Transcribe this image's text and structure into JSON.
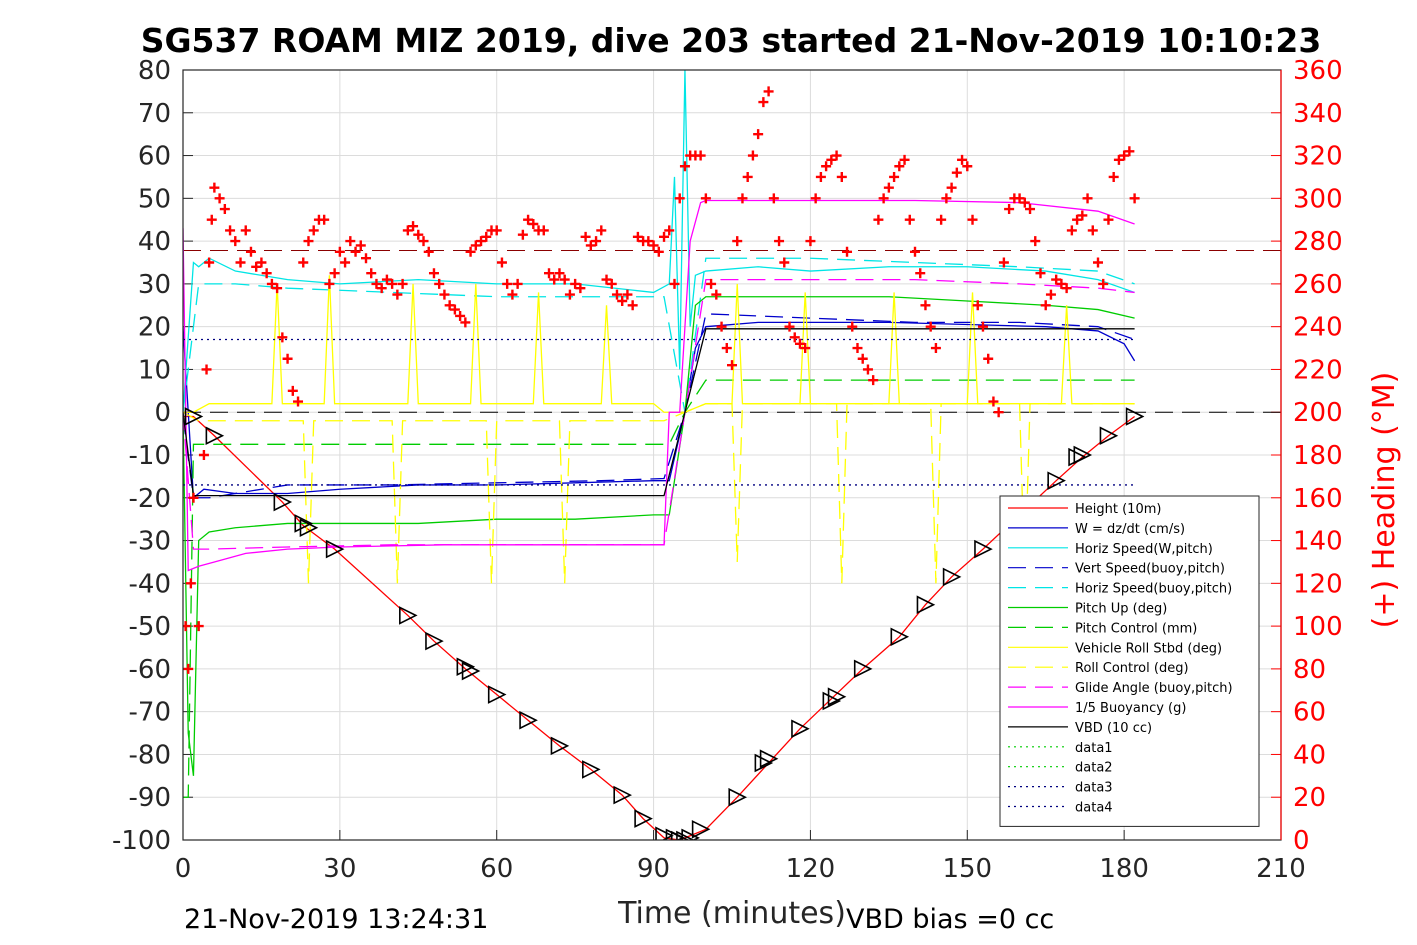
{
  "chart_data": {
    "type": "line",
    "title": "SG537 ROAM MIZ 2019, dive 203 started 21-Nov-2019 10:10:23",
    "xlabel": "Time (minutes)",
    "ylabel": "",
    "ylabel_right": "(+) Heading (°M)",
    "xlim": [
      0,
      210
    ],
    "ylim": [
      -100,
      80
    ],
    "ylim_right": [
      0,
      360
    ],
    "x_ticks": [
      "0",
      "30",
      "60",
      "90",
      "120",
      "150",
      "180",
      "210"
    ],
    "y_ticks": [
      "80",
      "70",
      "60",
      "50",
      "40",
      "30",
      "20",
      "10",
      "0",
      "-10",
      "-20",
      "-30",
      "-40",
      "-50",
      "-60",
      "-70",
      "-80",
      "-90",
      "-100"
    ],
    "y_ticks_right": [
      "360",
      "340",
      "320",
      "300",
      "280",
      "260",
      "240",
      "220",
      "200",
      "180",
      "160",
      "140",
      "120",
      "100",
      "80",
      "60",
      "40",
      "20",
      "0"
    ],
    "grid": true,
    "legend_position": "bottom-right",
    "footer_left": "21-Nov-2019 13:24:31",
    "footer_right": "VBD bias =0 cc",
    "series": [
      {
        "name": "Height (10m)",
        "color": "#ff0000",
        "style": "solid",
        "x": [
          0,
          2,
          6,
          19,
          23,
          29,
          43,
          48,
          54,
          60,
          66,
          72,
          78,
          84,
          88,
          92,
          95,
          97,
          100,
          106,
          112,
          118,
          124,
          130,
          137,
          142,
          147,
          153,
          160,
          167,
          172,
          177,
          182
        ],
        "y": [
          -1,
          -1,
          -5.5,
          -21,
          -26.5,
          -32,
          -47.5,
          -53.5,
          -60,
          -66,
          -72,
          -78,
          -83.5,
          -89.5,
          -95,
          -99.5,
          -100,
          -99,
          -97.5,
          -90,
          -82,
          -74,
          -67,
          -60,
          -52.5,
          -45,
          -38.5,
          -32,
          -24,
          -16,
          -10.5,
          -5.5,
          -1
        ]
      },
      {
        "name": "W = dz/dt (cm/s)",
        "color": "#0000cc",
        "style": "solid",
        "x": [
          0,
          1,
          2,
          4,
          10,
          20,
          30,
          45,
          60,
          75,
          90,
          93,
          96,
          98,
          100,
          110,
          120,
          135,
          150,
          165,
          175,
          180,
          182
        ],
        "y": [
          20,
          0,
          -20,
          -18,
          -19,
          -19,
          -18,
          -17,
          -17,
          -16.5,
          -16,
          -16,
          0,
          15,
          20,
          21,
          21,
          21,
          20.5,
          20,
          19,
          16,
          12
        ]
      },
      {
        "name": "Horiz Speed(W,pitch)",
        "color": "#00e5e5",
        "style": "solid",
        "x": [
          0,
          2,
          3,
          5,
          10,
          20,
          30,
          45,
          60,
          75,
          90,
          93,
          94,
          95,
          96,
          97,
          98,
          100,
          110,
          120,
          135,
          150,
          165,
          175,
          182
        ],
        "y": [
          0,
          35,
          34,
          36,
          33,
          31,
          30,
          31,
          30,
          30,
          28,
          30,
          55,
          10,
          80,
          20,
          32,
          33,
          34,
          33,
          34,
          34,
          33,
          31,
          28
        ]
      },
      {
        "name": "Vert Speed(buoy,pitch)",
        "color": "#0000cc",
        "style": "dashed",
        "x": [
          0,
          2,
          5,
          20,
          40,
          60,
          80,
          92,
          96,
          100,
          120,
          140,
          160,
          175,
          182
        ],
        "y": [
          -1,
          -20,
          -20,
          -17,
          -17,
          -16.5,
          -16,
          -15.5,
          0,
          23,
          22,
          21,
          21,
          20,
          17
        ]
      },
      {
        "name": "Horiz Speed(buoy,pitch)",
        "color": "#00e5e5",
        "style": "dashed",
        "x": [
          0,
          3,
          10,
          20,
          40,
          60,
          80,
          92,
          96,
          100,
          120,
          140,
          160,
          175,
          182
        ],
        "y": [
          0,
          30,
          30,
          29,
          28,
          27,
          27,
          27,
          0,
          36,
          36,
          35,
          34,
          33,
          30
        ]
      },
      {
        "name": "Pitch Up (deg)",
        "color": "#00cc00",
        "style": "solid",
        "x": [
          0,
          1,
          2,
          3,
          5,
          10,
          20,
          30,
          45,
          60,
          75,
          90,
          93,
          96,
          98,
          100,
          110,
          120,
          135,
          150,
          165,
          175,
          182
        ],
        "y": [
          0,
          -75,
          -85,
          -30,
          -28,
          -27,
          -26,
          -26,
          -26,
          -25,
          -25,
          -24,
          -24,
          0,
          25,
          27,
          27,
          27,
          27,
          26,
          25,
          24,
          22
        ]
      },
      {
        "name": "Pitch Control (mm)",
        "color": "#00cc00",
        "style": "dashed",
        "x": [
          0,
          1,
          2,
          5,
          30,
          60,
          92,
          93,
          96,
          100,
          130,
          160,
          182
        ],
        "y": [
          -90,
          -90,
          -7.5,
          -7.5,
          -7.5,
          -7.5,
          -7.5,
          -7.5,
          0,
          7.5,
          7.5,
          7.5,
          7.5
        ]
      },
      {
        "name": "Vehicle Roll Stbd (deg)",
        "color": "#ffff00",
        "style": "solid",
        "x": [
          0,
          2,
          5,
          17,
          18,
          19,
          20,
          27,
          28,
          29,
          43,
          44,
          45,
          55,
          56,
          57,
          67,
          68,
          69,
          80,
          81,
          82,
          90,
          92,
          96,
          100,
          105,
          106,
          107,
          118,
          119,
          120,
          135,
          136,
          137,
          150,
          151,
          152,
          168,
          169,
          170,
          182
        ],
        "y": [
          0,
          0,
          2,
          2,
          30,
          2,
          2,
          2,
          32,
          2,
          2,
          30,
          2,
          2,
          30,
          2,
          2,
          28,
          2,
          2,
          25,
          2,
          2,
          0,
          0,
          2,
          2,
          30,
          2,
          2,
          28,
          2,
          2,
          28,
          2,
          2,
          28,
          2,
          2,
          25,
          2,
          2
        ]
      },
      {
        "name": "Roll Control (deg)",
        "color": "#ffff00",
        "style": "dashed",
        "x": [
          0,
          3,
          6,
          23,
          24,
          25,
          40,
          41,
          42,
          58,
          59,
          60,
          72,
          73,
          74,
          92,
          96,
          100,
          105,
          106,
          107,
          125,
          126,
          127,
          143,
          144,
          145,
          160,
          161,
          162,
          182
        ],
        "y": [
          0,
          -2,
          -2,
          -2,
          -40,
          -2,
          -2,
          -40,
          -2,
          -2,
          -40,
          -2,
          -2,
          -40,
          -2,
          -2,
          0,
          2,
          2,
          -35,
          2,
          2,
          -40,
          2,
          2,
          -40,
          2,
          2,
          -40,
          2,
          2
        ]
      },
      {
        "name": "Glide Angle (buoy,pitch)",
        "color": "#ff00ff",
        "style": "dashed",
        "x": [
          0,
          2,
          5,
          20,
          40,
          60,
          80,
          92,
          96,
          100,
          120,
          140,
          160,
          175,
          182
        ],
        "y": [
          0,
          -32,
          -32,
          -31.5,
          -31,
          -31,
          -31,
          -31,
          0,
          31,
          31,
          31,
          30,
          29,
          28
        ]
      },
      {
        "name": "1/5 Buoyancy (g)",
        "color": "#ff00ff",
        "style": "solid",
        "x": [
          0,
          1,
          3,
          6,
          12,
          20,
          30,
          50,
          70,
          92,
          93,
          95,
          97,
          99,
          100,
          120,
          140,
          160,
          175,
          182
        ],
        "y": [
          43,
          -37,
          -36,
          -35,
          -33,
          -32,
          -31.5,
          -31,
          -31,
          -31,
          0,
          0,
          40,
          49,
          49.5,
          49.5,
          49.5,
          49,
          47,
          44
        ]
      },
      {
        "name": "VBD (10 cc)",
        "color": "#000000",
        "style": "solid",
        "x": [
          0,
          2,
          5,
          30,
          60,
          92,
          96,
          100,
          130,
          160,
          182
        ],
        "y": [
          0,
          -19.5,
          -19.5,
          -19.5,
          -19.5,
          -19.5,
          0,
          19.5,
          19.5,
          19.5,
          19.5
        ]
      },
      {
        "name": "data1",
        "color": "#00cc00",
        "style": "dotted",
        "x": [],
        "y": []
      },
      {
        "name": "data2",
        "color": "#00cc00",
        "style": "dotted",
        "x": [],
        "y": []
      },
      {
        "name": "data3",
        "color": "#000080",
        "style": "dotted",
        "x": [
          0,
          182
        ],
        "y": [
          17,
          17
        ]
      },
      {
        "name": "data4",
        "color": "#000080",
        "style": "dotted",
        "x": [
          0,
          182
        ],
        "y": [
          -17,
          -17
        ]
      }
    ],
    "reference_lines": [
      {
        "color": "#8b0000",
        "style": "dashed",
        "y": 37.8
      },
      {
        "color": "#000000",
        "style": "dashed",
        "y": 0
      }
    ],
    "heading": {
      "name": "(+) Heading (°M)",
      "color": "#ff0000",
      "marker": "+",
      "axis": "right",
      "x": [
        0.5,
        1,
        1.5,
        2,
        3,
        4,
        4.5,
        5,
        5.5,
        6,
        7,
        8,
        9,
        10,
        11,
        12,
        13,
        14,
        15,
        16,
        17,
        18,
        19,
        20,
        21,
        22,
        23,
        24,
        25,
        26,
        27,
        28,
        29,
        30,
        31,
        32,
        33,
        34,
        35,
        36,
        37,
        38,
        39,
        40,
        41,
        42,
        43,
        44,
        45,
        46,
        47,
        48,
        49,
        50,
        51,
        52,
        53,
        54,
        55,
        56,
        57,
        58,
        59,
        60,
        61,
        62,
        63,
        64,
        65,
        66,
        67,
        68,
        69,
        70,
        71,
        72,
        73,
        74,
        75,
        76,
        77,
        78,
        79,
        80,
        81,
        82,
        83,
        84,
        85,
        86,
        87,
        88,
        89,
        90,
        91,
        92,
        93,
        94,
        95,
        96,
        97,
        98,
        99,
        100,
        101,
        102,
        103,
        104,
        105,
        106,
        107,
        108,
        109,
        110,
        111,
        112,
        113,
        114,
        115,
        116,
        117,
        118,
        119,
        120,
        121,
        122,
        123,
        124,
        125,
        126,
        127,
        128,
        129,
        130,
        131,
        132,
        133,
        134,
        135,
        136,
        137,
        138,
        139,
        140,
        141,
        142,
        143,
        144,
        145,
        146,
        147,
        148,
        149,
        150,
        151,
        152,
        153,
        154,
        155,
        156,
        157,
        158,
        159,
        160,
        161,
        162,
        163,
        164,
        165,
        166,
        167,
        168,
        169,
        170,
        171,
        172,
        173,
        174,
        175,
        176,
        177,
        178,
        179,
        180,
        181,
        182
      ],
      "y": [
        100,
        80,
        120,
        160,
        100,
        180,
        220,
        270,
        290,
        305,
        300,
        295,
        285,
        280,
        270,
        285,
        275,
        268,
        270,
        265,
        260,
        258,
        235,
        225,
        210,
        205,
        270,
        280,
        285,
        290,
        290,
        260,
        265,
        275,
        270,
        280,
        275,
        278,
        272,
        265,
        260,
        258,
        262,
        260,
        255,
        260,
        285,
        287,
        283,
        280,
        275,
        265,
        260,
        255,
        250,
        248,
        245,
        242,
        275,
        278,
        280,
        282,
        285,
        285,
        270,
        260,
        255,
        260,
        283,
        290,
        288,
        285,
        285,
        265,
        262,
        265,
        262,
        255,
        260,
        258,
        282,
        278,
        280,
        285,
        262,
        260,
        255,
        252,
        255,
        250,
        282,
        280,
        280,
        278,
        275,
        282,
        285,
        260,
        300,
        315,
        320,
        320,
        320,
        300,
        260,
        255,
        240,
        230,
        222,
        280,
        300,
        310,
        320,
        330,
        345,
        350,
        300,
        280,
        270,
        240,
        235,
        232,
        230,
        280,
        300,
        310,
        315,
        318,
        320,
        310,
        275,
        240,
        230,
        225,
        220,
        215,
        290,
        300,
        305,
        310,
        315,
        318,
        290,
        275,
        265,
        250,
        240,
        230,
        290,
        300,
        305,
        312,
        318,
        315,
        290,
        250,
        240,
        225,
        205,
        200,
        270,
        295,
        300,
        300,
        298,
        295,
        280,
        265,
        250,
        255,
        262,
        260,
        258,
        285,
        290,
        292,
        300,
        285,
        270,
        260,
        290,
        310,
        318,
        320,
        322,
        300
      ]
    },
    "depth_markers": {
      "name": "Height (10m) markers",
      "color": "#000000",
      "x": [
        2,
        6,
        19,
        23,
        24,
        29,
        43,
        48,
        54,
        55,
        60,
        66,
        72,
        78,
        84,
        88,
        92,
        94,
        95,
        96,
        97,
        99,
        106,
        111,
        112,
        118,
        124,
        125,
        130,
        137,
        142,
        147,
        153,
        160,
        167,
        171,
        172,
        177,
        182
      ],
      "y": [
        -1,
        -5.5,
        -21,
        -26,
        -27,
        -32,
        -47.5,
        -53.5,
        -59.5,
        -60.5,
        -66,
        -72,
        -78,
        -83.5,
        -89.5,
        -95,
        -99,
        -99.5,
        -100,
        -100,
        -99.5,
        -97.5,
        -90,
        -82,
        -81,
        -74,
        -67.5,
        -66.5,
        -60,
        -52.5,
        -45,
        -38.5,
        -32,
        -24,
        -16,
        -10.5,
        -10,
        -5.5,
        -1
      ]
    }
  }
}
